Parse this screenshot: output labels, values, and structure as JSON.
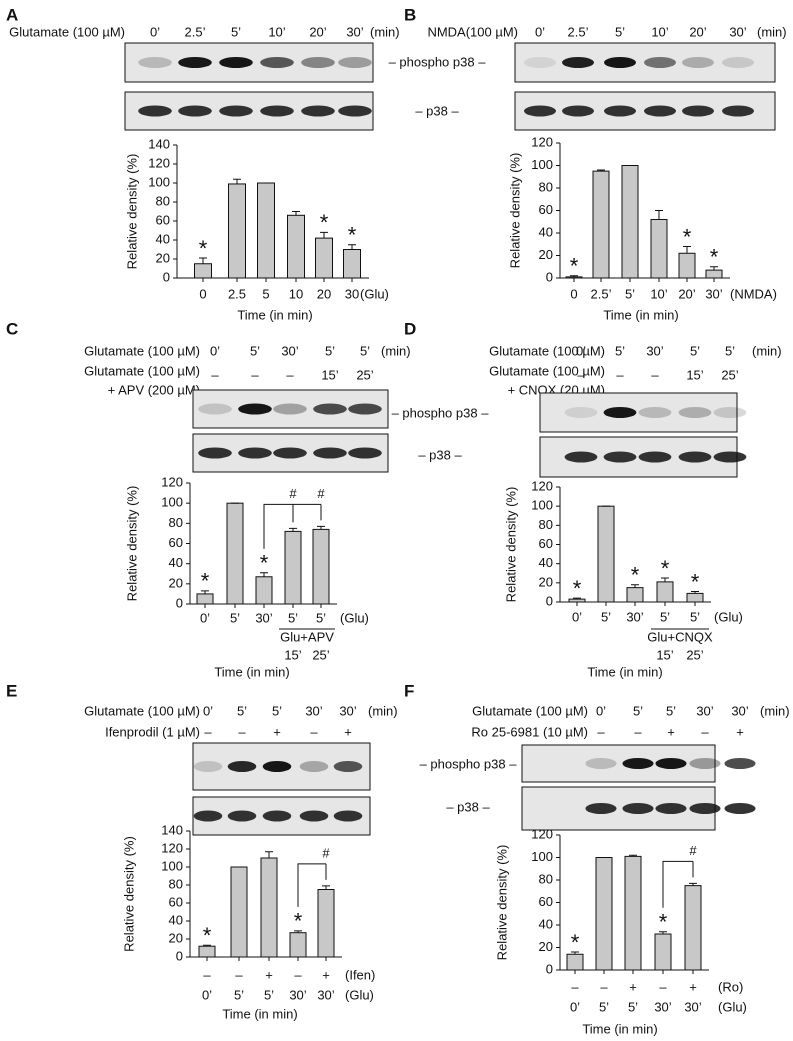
{
  "chart_data": [
    {
      "type": "bar",
      "panel": "A",
      "treatment_rows": [
        {
          "label": [
            "Glutamate (100 µM)"
          ],
          "entries": [
            "0’",
            "2.5’",
            "5’",
            "10’",
            "20’",
            "30’"
          ],
          "unit": "(min)"
        }
      ],
      "blot_labels": [
        "– phospho p38 –",
        "– p38 –"
      ],
      "ylabel": "Relative density (%)",
      "xlabel": "Time (in min)",
      "categories": [
        "0",
        "2.5",
        "5",
        "10",
        "20",
        "30"
      ],
      "category_unit": "(Glu)",
      "values": [
        15,
        99,
        100,
        66,
        42,
        30
      ],
      "errors": [
        6,
        5,
        0,
        4,
        6,
        5
      ],
      "markers": [
        "*",
        null,
        null,
        null,
        "*",
        "*"
      ],
      "color": "#c8c8c8",
      "ylim": [
        0,
        140
      ],
      "yticks": [
        0,
        20,
        40,
        60,
        80,
        100,
        120,
        140
      ]
    },
    {
      "type": "bar",
      "panel": "B",
      "treatment_rows": [
        {
          "label": [
            "NMDA(100 µM)"
          ],
          "entries": [
            "0’",
            "2.5’",
            "5’",
            "10’",
            "20’",
            "30’"
          ],
          "unit": "(min)"
        }
      ],
      "ylabel": "Relative density (%)",
      "xlabel": "Time (in min)",
      "categories": [
        "0",
        "2.5’",
        "5’",
        "10’",
        "20’",
        "30’"
      ],
      "category_unit": "(NMDA)",
      "values": [
        1,
        95,
        100,
        52,
        22,
        7
      ],
      "errors": [
        1,
        1,
        0,
        8,
        6,
        3
      ],
      "markers": [
        "*",
        null,
        null,
        null,
        "*",
        "*"
      ],
      "color": "#c8c8c8",
      "ylim": [
        0,
        120
      ],
      "yticks": [
        0,
        20,
        40,
        60,
        80,
        100,
        120
      ]
    },
    {
      "type": "bar",
      "panel": "C",
      "treatment_rows": [
        {
          "label": [
            "Glutamate (100 µM)"
          ],
          "entries": [
            "0’",
            "5’",
            "30’",
            "5’",
            "5’"
          ],
          "unit": "(min)"
        },
        {
          "label": [
            "Glutamate (100 µM)",
            "+ APV (200 µM)"
          ],
          "entries": [
            "–",
            "–",
            "–",
            "15’",
            "25’"
          ]
        }
      ],
      "ylabel": "Relative density (%)",
      "xlabel": "Time (in min)",
      "categories": [
        "0’",
        "5’",
        "30’",
        "5’",
        "5’"
      ],
      "category_unit": "(Glu)",
      "group": {
        "label": "Glu+APV",
        "labels": [
          "15’",
          "25’"
        ]
      },
      "values": [
        10,
        100,
        27,
        72,
        74
      ],
      "errors": [
        3,
        0,
        4,
        3,
        3
      ],
      "markers": [
        "*",
        null,
        "*",
        null,
        null
      ],
      "significance": [
        null,
        null,
        null,
        "#",
        "#"
      ],
      "color": "#c8c8c8",
      "ylim": [
        0,
        120
      ],
      "yticks": [
        0,
        20,
        40,
        60,
        80,
        100,
        120
      ]
    },
    {
      "type": "bar",
      "panel": "D",
      "treatment_rows": [
        {
          "label": [
            "Glutamate (100 µM)"
          ],
          "entries": [
            "0’",
            "5’",
            "30’",
            "5’",
            "5’"
          ],
          "unit": "(min)"
        },
        {
          "label": [
            "Glutamate (100 µM)",
            "+ CNQX (20 µM)"
          ],
          "entries": [
            "–",
            "–",
            "–",
            "15’",
            "25’"
          ]
        }
      ],
      "blot_labels": [
        "– phospho p38 –",
        "– p38 –"
      ],
      "ylabel": "Relative density (%)",
      "xlabel": "Time (in min)",
      "categories": [
        "0’",
        "5’",
        "30’",
        "5’",
        "5’"
      ],
      "category_unit": "(Glu)",
      "group": {
        "label": "Glu+CNQX",
        "labels": [
          "15’",
          "25’"
        ]
      },
      "values": [
        3,
        100,
        15,
        21,
        9
      ],
      "errors": [
        1,
        0,
        3,
        4,
        2
      ],
      "markers": [
        "*",
        null,
        "*",
        "*",
        "*"
      ],
      "color": "#c8c8c8",
      "ylim": [
        0,
        120
      ],
      "yticks": [
        0,
        20,
        40,
        60,
        80,
        100,
        120
      ]
    },
    {
      "type": "bar",
      "panel": "E",
      "treatment_rows": [
        {
          "label": [
            "Glutamate (100 µM)"
          ],
          "entries": [
            "0’",
            "5’",
            "5’",
            "30’",
            "30’"
          ],
          "unit": "(min)"
        },
        {
          "label": [
            "Ifenprodil (1 µM)"
          ],
          "entries": [
            "–",
            "–",
            "+",
            "–",
            "+"
          ]
        }
      ],
      "ylabel": "Relative density (%)",
      "xlabel": "Time (in min)",
      "pre_rows": [
        {
          "labels": [
            "–",
            "–",
            "+",
            "–",
            "+"
          ],
          "unit": "(Ifen)"
        }
      ],
      "categories": [
        "0’",
        "5’",
        "5’",
        "30’",
        "30’"
      ],
      "category_unit": "(Glu)",
      "values": [
        12,
        100,
        110,
        27,
        75
      ],
      "errors": [
        1,
        0,
        7,
        2,
        4
      ],
      "markers": [
        "*",
        null,
        null,
        "*",
        null
      ],
      "significance": [
        null,
        null,
        null,
        null,
        "#"
      ],
      "color": "#c8c8c8",
      "ylim": [
        0,
        140
      ],
      "yticks": [
        0,
        20,
        40,
        60,
        80,
        100,
        120,
        140
      ]
    },
    {
      "type": "bar",
      "panel": "F",
      "treatment_rows": [
        {
          "label": [
            "Glutamate (100 µM)"
          ],
          "entries": [
            "0’",
            "5’",
            "5’",
            "30’",
            "30’"
          ],
          "unit": "(min)"
        },
        {
          "label": [
            "Ro 25-6981 (10 µM)"
          ],
          "entries": [
            "–",
            "–",
            "+",
            "–",
            "+"
          ]
        }
      ],
      "blot_labels": [
        "– phospho p38 –",
        "– p38 –"
      ],
      "ylabel": "Relative density (%)",
      "xlabel": "Time (in min)",
      "pre_rows": [
        {
          "labels": [
            "–",
            "–",
            "+",
            "–",
            "+"
          ],
          "unit": "(Ro)"
        }
      ],
      "categories": [
        "0’",
        "5’",
        "5’",
        "30’",
        "30’"
      ],
      "category_unit": "(Glu)",
      "values": [
        14,
        100,
        101,
        32,
        75
      ],
      "errors": [
        2,
        0,
        1,
        2,
        2
      ],
      "markers": [
        "*",
        null,
        null,
        "*",
        null
      ],
      "significance": [
        null,
        null,
        null,
        null,
        "#"
      ],
      "color": "#c8c8c8",
      "ylim": [
        0,
        120
      ],
      "yticks": [
        0,
        20,
        40,
        60,
        80,
        100,
        120
      ]
    }
  ]
}
